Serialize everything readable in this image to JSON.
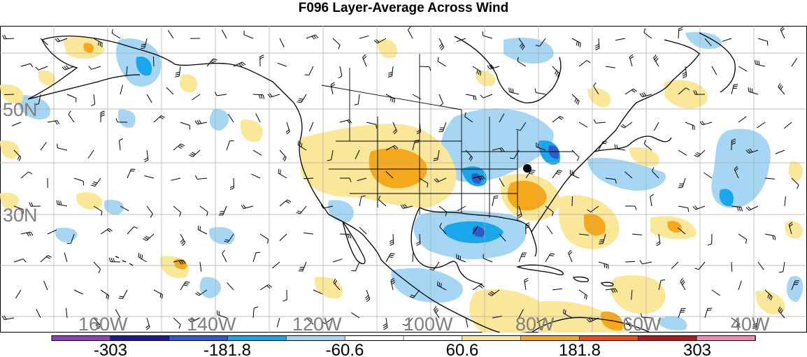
{
  "title": "F096 Layer-Average Across Wind",
  "map": {
    "lat_labels": [
      "50N",
      "30N"
    ],
    "lon_labels": [
      "160W",
      "140W",
      "120W",
      "100W",
      "80W",
      "60W",
      "40W"
    ],
    "land_color": "#ffffff",
    "grid_color": "#a0a0a0",
    "label_color": "#7f7f7f"
  },
  "colorbar": {
    "colors": [
      "#8e3fc2",
      "#1c1c93",
      "#2f5bc6",
      "#1aa6ea",
      "#a6d6f4",
      "#ffffff",
      "#ffffff",
      "#fbe79a",
      "#f5a81c",
      "#ea4d16",
      "#b01c1c",
      "#f28ab5"
    ],
    "labels": [
      "-303",
      "-181.8",
      "-60.6",
      "60.6",
      "181.8",
      "303"
    ]
  },
  "marker": {
    "name": "station-marker",
    "color": "#000000"
  }
}
